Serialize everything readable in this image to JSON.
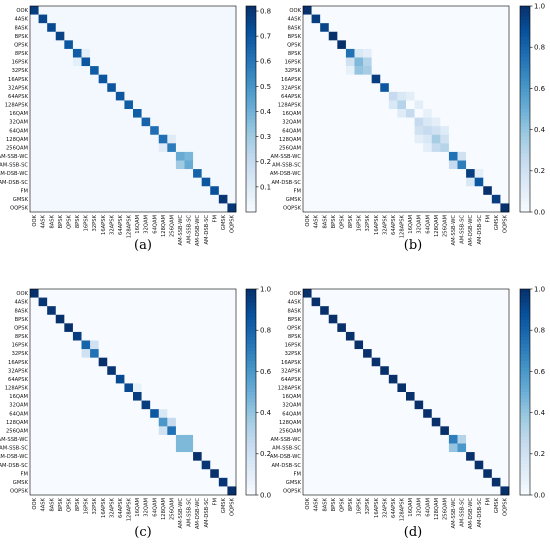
{
  "figure": {
    "captions": [
      "(a)",
      "(b)",
      "(c)",
      "(d)"
    ]
  },
  "chart_data": [
    {
      "type": "heatmap",
      "caption": "(a)",
      "labels": [
        "OOK",
        "4ASK",
        "8ASK",
        "BPSK",
        "QPSK",
        "8PSK",
        "16PSK",
        "32PSK",
        "16APSK",
        "32APSK",
        "64APSK",
        "128APSK",
        "16QAM",
        "32QAM",
        "64QAM",
        "128QAM",
        "256QAM",
        "AM-SSB-WC",
        "AM-SSB-SC",
        "AM-DSB-WC",
        "AM-DSB-SC",
        "FM",
        "GMSK",
        "OQPSK"
      ],
      "diagonal": [
        0.78,
        0.75,
        0.74,
        0.76,
        0.7,
        0.68,
        0.7,
        0.68,
        0.7,
        0.7,
        0.7,
        0.68,
        0.68,
        0.66,
        0.62,
        0.62,
        0.58,
        0.42,
        0.42,
        0.66,
        0.7,
        0.72,
        0.8,
        0.8
      ],
      "off_diagonal": [
        [
          17,
          18,
          0.38
        ],
        [
          18,
          17,
          0.3
        ],
        [
          15,
          16,
          0.1
        ],
        [
          16,
          15,
          0.1
        ],
        [
          5,
          6,
          0.08
        ],
        [
          6,
          5,
          0.08
        ]
      ],
      "background": 0.02,
      "colorbar": {
        "min": 0,
        "max": 0.82,
        "ticks": [
          "0.1",
          "0.2",
          "0.3",
          "0.4",
          "0.5",
          "0.6",
          "0.7",
          "0.8"
        ],
        "tick_values": [
          0.1,
          0.2,
          0.3,
          0.4,
          0.5,
          0.6,
          0.7,
          0.8
        ]
      }
    },
    {
      "type": "heatmap",
      "caption": "(b)",
      "labels": [
        "OOK",
        "4ASK",
        "8ASK",
        "BPSK",
        "QPSK",
        "8PSK",
        "16PSK",
        "32PSK",
        "16APSK",
        "32APSK",
        "64APSK",
        "128APSK",
        "16QAM",
        "32QAM",
        "64QAM",
        "128QAM",
        "256QAM",
        "AM-SSB-WC",
        "AM-SSB-SC",
        "AM-DSB-WC",
        "AM-DSB-SC",
        "FM",
        "GMSK",
        "OQPSK"
      ],
      "diagonal": [
        1.0,
        0.95,
        0.92,
        1.0,
        1.0,
        0.75,
        0.45,
        0.35,
        0.95,
        0.85,
        0.25,
        0.3,
        0.25,
        0.25,
        0.25,
        0.35,
        0.3,
        0.75,
        0.7,
        0.95,
        0.85,
        1.0,
        0.95,
        1.0
      ],
      "off_diagonal": [
        [
          5,
          6,
          0.15
        ],
        [
          6,
          5,
          0.2
        ],
        [
          6,
          7,
          0.3
        ],
        [
          7,
          6,
          0.4
        ],
        [
          5,
          7,
          0.1
        ],
        [
          7,
          5,
          0.08
        ],
        [
          10,
          11,
          0.15
        ],
        [
          11,
          10,
          0.15
        ],
        [
          10,
          12,
          0.1
        ],
        [
          12,
          11,
          0.12
        ],
        [
          11,
          13,
          0.1
        ],
        [
          13,
          14,
          0.15
        ],
        [
          14,
          13,
          0.2
        ],
        [
          14,
          15,
          0.2
        ],
        [
          15,
          14,
          0.15
        ],
        [
          15,
          16,
          0.2
        ],
        [
          16,
          15,
          0.25
        ],
        [
          12,
          14,
          0.08
        ],
        [
          13,
          15,
          0.1
        ],
        [
          15,
          13,
          0.1
        ],
        [
          16,
          14,
          0.1
        ],
        [
          14,
          16,
          0.12
        ],
        [
          17,
          18,
          0.2
        ],
        [
          18,
          17,
          0.25
        ],
        [
          19,
          20,
          0.1
        ],
        [
          20,
          19,
          0.15
        ]
      ],
      "background": 0.0,
      "colorbar": {
        "min": 0,
        "max": 1.0,
        "ticks": [
          "0.0",
          "0.2",
          "0.4",
          "0.6",
          "0.8",
          "1.0"
        ],
        "tick_values": [
          0,
          0.2,
          0.4,
          0.6,
          0.8,
          1.0
        ]
      }
    },
    {
      "type": "heatmap",
      "caption": "(c)",
      "labels": [
        "OOK",
        "4ASK",
        "8ASK",
        "BPSK",
        "QPSK",
        "8PSK",
        "16PSK",
        "32PSK",
        "16APSK",
        "32APSK",
        "64APSK",
        "128APSK",
        "16QAM",
        "32QAM",
        "64QAM",
        "128QAM",
        "256QAM",
        "AM-SSB-WC",
        "AM-SSB-SC",
        "AM-DSB-WC",
        "AM-DSB-SC",
        "FM",
        "GMSK",
        "OQPSK"
      ],
      "diagonal": [
        1.0,
        0.98,
        0.98,
        1.0,
        1.0,
        0.95,
        0.8,
        0.75,
        1.0,
        0.98,
        0.9,
        0.9,
        0.95,
        0.95,
        0.85,
        0.6,
        0.75,
        0.45,
        0.45,
        1.0,
        0.98,
        1.0,
        0.98,
        1.0
      ],
      "off_diagonal": [
        [
          6,
          7,
          0.2
        ],
        [
          7,
          6,
          0.2
        ],
        [
          11,
          12,
          0.08
        ],
        [
          15,
          16,
          0.25
        ],
        [
          16,
          15,
          0.2
        ],
        [
          14,
          15,
          0.15
        ],
        [
          17,
          18,
          0.45
        ],
        [
          18,
          17,
          0.45
        ]
      ],
      "background": 0.0,
      "colorbar": {
        "min": 0,
        "max": 1.0,
        "ticks": [
          "0.0",
          "0.2",
          "0.4",
          "0.6",
          "0.8",
          "1.0"
        ],
        "tick_values": [
          0,
          0.2,
          0.4,
          0.6,
          0.8,
          1.0
        ]
      }
    },
    {
      "type": "heatmap",
      "caption": "(d)",
      "labels": [
        "OOK",
        "4ASK",
        "8ASK",
        "BPSK",
        "QPSK",
        "8PSK",
        "16PSK",
        "32PSK",
        "16APSK",
        "32APSK",
        "64APSK",
        "128APSK",
        "16QAM",
        "32QAM",
        "64QAM",
        "128QAM",
        "256QAM",
        "AM-SSB-WC",
        "AM-SSB-SC",
        "AM-DSB-WC",
        "AM-DSB-SC",
        "FM",
        "GMSK",
        "OQPSK"
      ],
      "diagonal": [
        1.0,
        1.0,
        1.0,
        1.0,
        1.0,
        1.0,
        1.0,
        1.0,
        1.0,
        1.0,
        1.0,
        1.0,
        1.0,
        1.0,
        1.0,
        1.0,
        1.0,
        0.7,
        0.6,
        1.0,
        1.0,
        1.0,
        1.0,
        1.0
      ],
      "off_diagonal": [
        [
          17,
          18,
          0.3
        ],
        [
          18,
          17,
          0.4
        ]
      ],
      "background": 0.0,
      "colorbar": {
        "min": 0,
        "max": 1.0,
        "ticks": [
          "0.0",
          "0.2",
          "0.4",
          "0.6",
          "0.8",
          "1.0"
        ],
        "tick_values": [
          0,
          0.2,
          0.4,
          0.6,
          0.8,
          1.0
        ]
      }
    }
  ]
}
